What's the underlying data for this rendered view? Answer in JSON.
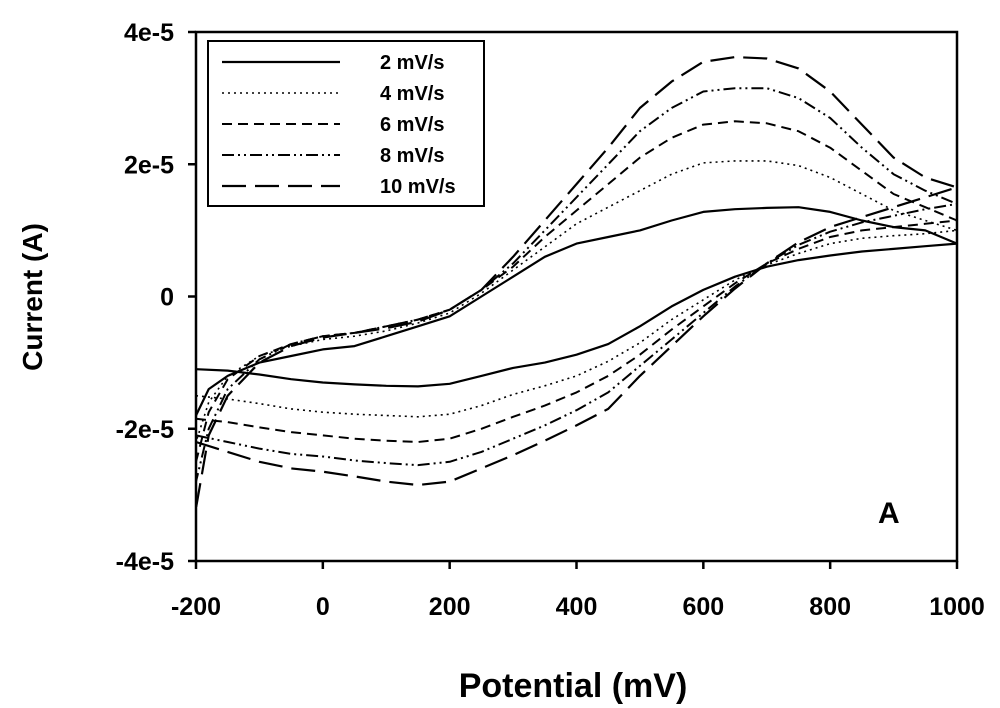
{
  "chart_data": {
    "type": "line",
    "title": "",
    "xlabel": "Potential (mV)",
    "ylabel": "Current (A)",
    "xlim": [
      -200,
      1000
    ],
    "ylim": [
      -4e-05,
      4e-05
    ],
    "x_ticks": [
      -200,
      0,
      200,
      400,
      600,
      800,
      1000
    ],
    "x_tick_labels": [
      "-200",
      "0",
      "200",
      "400",
      "600",
      "800",
      "1000"
    ],
    "y_ticks": [
      -4e-05,
      -2e-05,
      0,
      2e-05,
      4e-05
    ],
    "y_tick_labels": [
      "-4e-5",
      "-2e-5",
      "0",
      "2e-5",
      "4e-5"
    ],
    "grid": false,
    "legend_position": "top-left",
    "annotation": "A",
    "series": [
      {
        "name": "2 mV/s",
        "dash": "solid",
        "width": 2.2,
        "x": [
          -200,
          -150,
          -100,
          -50,
          0,
          50,
          100,
          150,
          200,
          250,
          300,
          350,
          400,
          450,
          500,
          550,
          600,
          650,
          700,
          750,
          800,
          850,
          900,
          950,
          1000,
          950,
          900,
          850,
          800,
          750,
          700,
          650,
          600,
          550,
          500,
          450,
          400,
          350,
          300,
          250,
          200,
          150,
          100,
          50,
          0,
          -50,
          -100,
          -150,
          -180,
          -200
        ],
        "y": [
          -1.1e-05,
          -1.12e-05,
          -1.18e-05,
          -1.25e-05,
          -1.3e-05,
          -1.33e-05,
          -1.35e-05,
          -1.36e-05,
          -1.32e-05,
          -1.2e-05,
          -1.08e-05,
          -1e-05,
          -8.8e-06,
          -7.2e-06,
          -4.5e-06,
          -1.5e-06,
          1e-06,
          3e-06,
          4.5e-06,
          5.5e-06,
          6.2e-06,
          6.8e-06,
          7.2e-06,
          7.6e-06,
          8e-06,
          1e-05,
          1.05e-05,
          1.15e-05,
          1.28e-05,
          1.35e-05,
          1.34e-05,
          1.32e-05,
          1.28e-05,
          1.15e-05,
          1e-05,
          9e-06,
          8e-06,
          6e-06,
          3e-06,
          0.0,
          -3e-06,
          -4.5e-06,
          -6e-06,
          -7.5e-06,
          -8e-06,
          -9e-06,
          -1e-05,
          -1.2e-05,
          -1.4e-05,
          -1.8e-05
        ]
      },
      {
        "name": "4 mV/s",
        "dash": "dotted",
        "width": 1.6,
        "x": [
          -200,
          -150,
          -100,
          -50,
          0,
          50,
          100,
          150,
          200,
          250,
          300,
          350,
          400,
          450,
          500,
          550,
          600,
          650,
          700,
          750,
          800,
          850,
          900,
          950,
          1000,
          950,
          900,
          850,
          800,
          750,
          700,
          650,
          600,
          550,
          500,
          450,
          400,
          350,
          300,
          250,
          200,
          150,
          100,
          50,
          0,
          -50,
          -100,
          -150,
          -180,
          -200
        ],
        "y": [
          -1.5e-05,
          -1.55e-05,
          -1.62e-05,
          -1.7e-05,
          -1.75e-05,
          -1.78e-05,
          -1.8e-05,
          -1.82e-05,
          -1.78e-05,
          -1.65e-05,
          -1.48e-05,
          -1.35e-05,
          -1.2e-05,
          -9.8e-06,
          -7e-06,
          -3.5e-06,
          -5e-07,
          2.5e-06,
          4.8e-06,
          6.5e-06,
          8e-06,
          8.8e-06,
          9.2e-06,
          9.5e-06,
          1e-05,
          1.15e-05,
          1.3e-05,
          1.55e-05,
          1.8e-05,
          1.98e-05,
          2.05e-05,
          2.05e-05,
          2.02e-05,
          1.85e-05,
          1.6e-05,
          1.35e-05,
          1.1e-05,
          7.5e-06,
          4e-06,
          5e-07,
          -2.5e-06,
          -4e-06,
          -5.2e-06,
          -6e-06,
          -6.5e-06,
          -7.5e-06,
          -9e-06,
          -1.2e-05,
          -1.6e-05,
          -2.2e-05
        ]
      },
      {
        "name": "6 mV/s",
        "dash": "short-dash",
        "width": 2.0,
        "x": [
          -200,
          -150,
          -100,
          -50,
          0,
          50,
          100,
          150,
          200,
          250,
          300,
          350,
          400,
          450,
          500,
          550,
          600,
          650,
          700,
          750,
          800,
          850,
          900,
          950,
          1000,
          950,
          900,
          850,
          800,
          750,
          700,
          650,
          600,
          550,
          500,
          450,
          400,
          350,
          300,
          250,
          200,
          150,
          100,
          50,
          0,
          -50,
          -100,
          -150,
          -180,
          -200
        ],
        "y": [
          -1.85e-05,
          -1.9e-05,
          -1.98e-05,
          -2.05e-05,
          -2.1e-05,
          -2.15e-05,
          -2.18e-05,
          -2.2e-05,
          -2.15e-05,
          -2e-05,
          -1.82e-05,
          -1.65e-05,
          -1.45e-05,
          -1.2e-05,
          -8.8e-06,
          -5e-06,
          -1.5e-06,
          2e-06,
          5e-06,
          7.2e-06,
          9e-06,
          1e-05,
          1.05e-05,
          1.1e-05,
          1.15e-05,
          1.35e-05,
          1.55e-05,
          1.9e-05,
          2.25e-05,
          2.5e-05,
          2.62e-05,
          2.65e-05,
          2.6e-05,
          2.4e-05,
          2.1e-05,
          1.7e-05,
          1.3e-05,
          9e-06,
          4.5e-06,
          1e-06,
          -2e-06,
          -3.5e-06,
          -4.5e-06,
          -5.5e-06,
          -6e-06,
          -7.2e-06,
          -9e-06,
          -1.25e-05,
          -1.75e-05,
          -2.5e-05
        ]
      },
      {
        "name": "8 mV/s",
        "dash": "dash-dot-dot",
        "width": 2.0,
        "x": [
          -200,
          -150,
          -100,
          -50,
          0,
          50,
          100,
          150,
          200,
          250,
          300,
          350,
          400,
          450,
          500,
          550,
          600,
          650,
          700,
          750,
          800,
          850,
          900,
          950,
          1000,
          950,
          900,
          850,
          800,
          750,
          700,
          650,
          600,
          550,
          500,
          450,
          400,
          350,
          300,
          250,
          200,
          150,
          100,
          50,
          0,
          -50,
          -100,
          -150,
          -180,
          -200
        ],
        "y": [
          -2.1e-05,
          -2.2e-05,
          -2.3e-05,
          -2.38e-05,
          -2.42e-05,
          -2.48e-05,
          -2.52e-05,
          -2.55e-05,
          -2.5e-05,
          -2.35e-05,
          -2.15e-05,
          -1.95e-05,
          -1.72e-05,
          -1.45e-05,
          -1.05e-05,
          -6.5e-06,
          -2.5e-06,
          1.5e-06,
          5e-06,
          7.8e-06,
          9.8e-06,
          1.12e-05,
          1.22e-05,
          1.32e-05,
          1.4e-05,
          1.6e-05,
          1.85e-05,
          2.25e-05,
          2.7e-05,
          3e-05,
          3.15e-05,
          3.15e-05,
          3.1e-05,
          2.85e-05,
          2.5e-05,
          2e-05,
          1.5e-05,
          1e-05,
          5e-06,
          1e-06,
          -2e-06,
          -3.5e-06,
          -4.5e-06,
          -5.5e-06,
          -6e-06,
          -7.2e-06,
          -9.5e-06,
          -1.4e-05,
          -2e-05,
          -2.8e-05
        ]
      },
      {
        "name": "10 mV/s",
        "dash": "long-dash",
        "width": 2.2,
        "x": [
          -200,
          -150,
          -100,
          -50,
          0,
          50,
          100,
          150,
          200,
          250,
          300,
          350,
          400,
          450,
          500,
          550,
          600,
          650,
          700,
          750,
          800,
          850,
          900,
          950,
          1000,
          950,
          900,
          850,
          800,
          750,
          700,
          650,
          600,
          550,
          500,
          450,
          400,
          350,
          300,
          250,
          200,
          150,
          100,
          50,
          0,
          -50,
          -100,
          -150,
          -180,
          -200
        ],
        "y": [
          -2.2e-05,
          -2.35e-05,
          -2.5e-05,
          -2.6e-05,
          -2.65e-05,
          -2.72e-05,
          -2.8e-05,
          -2.85e-05,
          -2.8e-05,
          -2.6e-05,
          -2.4e-05,
          -2.18e-05,
          -1.95e-05,
          -1.7e-05,
          -1.2e-05,
          -7.5e-06,
          -3e-06,
          1.2e-06,
          5e-06,
          8.2e-06,
          1.05e-05,
          1.2e-05,
          1.35e-05,
          1.5e-05,
          1.65e-05,
          1.8e-05,
          2.1e-05,
          2.6e-05,
          3.1e-05,
          3.45e-05,
          3.6e-05,
          3.62e-05,
          3.55e-05,
          3.25e-05,
          2.85e-05,
          2.25e-05,
          1.7e-05,
          1.15e-05,
          6e-06,
          1e-06,
          -2e-06,
          -3.8e-06,
          -4.8e-06,
          -5.5e-06,
          -6.2e-06,
          -7.5e-06,
          -1e-05,
          -1.5e-05,
          -2.1e-05,
          -3.2e-05
        ]
      }
    ]
  }
}
